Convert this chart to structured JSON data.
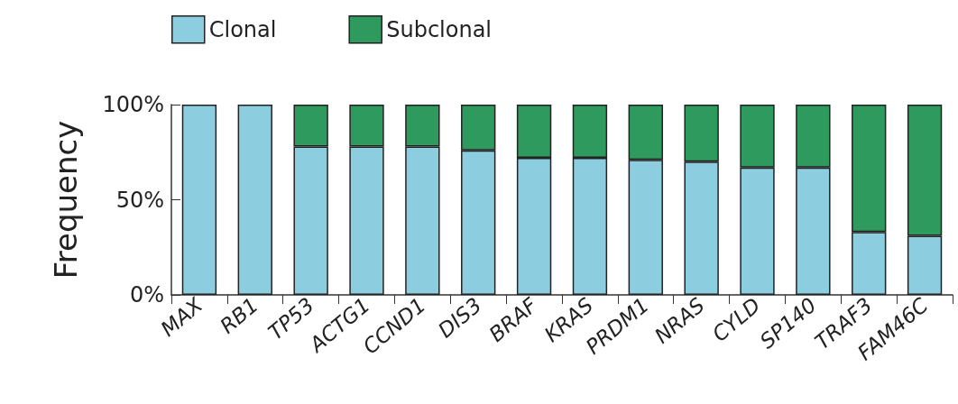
{
  "chart_data": {
    "type": "bar",
    "stacked": true,
    "ylabel": "Frequency",
    "categories": [
      "MAX",
      "RB1",
      "TP53",
      "ACTG1",
      "CCND1",
      "DIS3",
      "BRAF",
      "KRAS",
      "PRDM1",
      "NRAS",
      "CYLD",
      "SP140",
      "TRAF3",
      "FAM46C"
    ],
    "series": [
      {
        "name": "Clonal",
        "color": "#8ccde0",
        "values": [
          100,
          100,
          78,
          78,
          78,
          76,
          72,
          72,
          71,
          70,
          67,
          67,
          33,
          31
        ]
      },
      {
        "name": "Subclonal",
        "color": "#2f9a5e",
        "values": [
          null,
          null,
          22,
          22,
          22,
          24,
          28,
          28,
          29,
          30,
          33,
          33,
          67,
          69
        ]
      }
    ],
    "ylim": [
      0,
      100
    ],
    "yticks": [
      {
        "value": 0,
        "label": "0%"
      },
      {
        "value": 50,
        "label": "50%"
      },
      {
        "value": 100,
        "label": "100%"
      }
    ],
    "grid": false,
    "legend": "top left"
  }
}
